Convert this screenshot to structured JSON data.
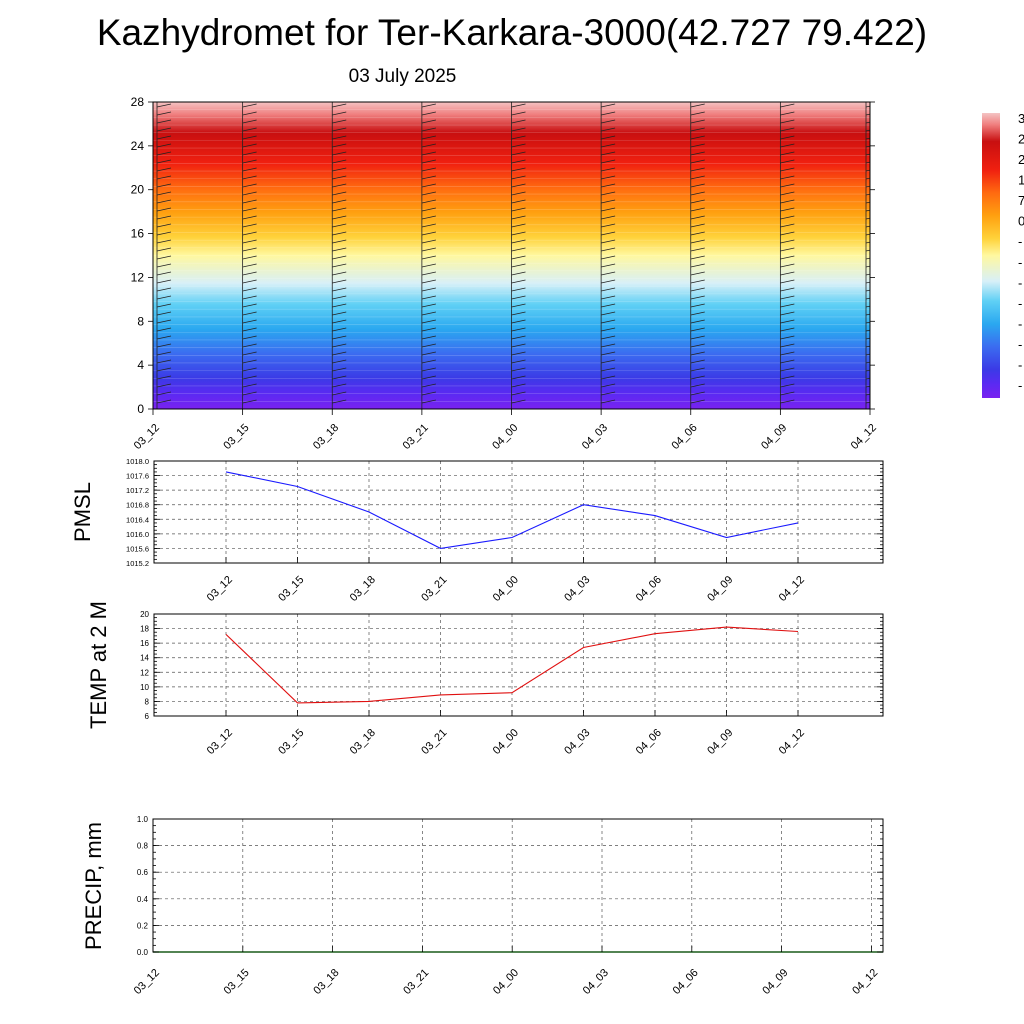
{
  "title": "Kazhydromet for Ter-Karkara-3000(42.727 79.422)",
  "subtitle": "03 July 2025",
  "colors": {
    "pmsl_line": "#1a1aff",
    "temp_line": "#e01010",
    "precip_line": "#1a5c1a"
  },
  "chart_data": [
    {
      "name": "upper-air-cross-section",
      "type": "heatmap",
      "x_ticks": [
        "03_12",
        "03_15",
        "03_18",
        "03_21",
        "04_00",
        "04_03",
        "04_06",
        "04_09",
        "04_12"
      ],
      "y_ticks": [
        "0",
        "4",
        "8",
        "12",
        "16",
        "20",
        "24",
        "28"
      ],
      "ylim": [
        0,
        28
      ],
      "colorbar_labels": [
        "3",
        "2",
        "2",
        "1",
        "7",
        "0",
        "-",
        "-",
        "-",
        "-",
        "-",
        "-",
        "-",
        "-"
      ],
      "colorbar_scale": [
        {
          "level": 0.0,
          "color": "#7a22f0"
        },
        {
          "level": 0.05,
          "color": "#5a2af2"
        },
        {
          "level": 0.1,
          "color": "#3b3ae6"
        },
        {
          "level": 0.18,
          "color": "#3b6cf0"
        },
        {
          "level": 0.26,
          "color": "#2aa8f0"
        },
        {
          "level": 0.34,
          "color": "#5fd0f5"
        },
        {
          "level": 0.41,
          "color": "#d8f0f8"
        },
        {
          "level": 0.5,
          "color": "#fff8a0"
        },
        {
          "level": 0.56,
          "color": "#ffd23a"
        },
        {
          "level": 0.64,
          "color": "#ffa010"
        },
        {
          "level": 0.72,
          "color": "#ff6a10"
        },
        {
          "level": 0.8,
          "color": "#f02010"
        },
        {
          "level": 0.9,
          "color": "#c80f10"
        },
        {
          "level": 0.96,
          "color": "#f08080"
        },
        {
          "level": 1.0,
          "color": "#f4c4c4"
        }
      ]
    },
    {
      "name": "pmsl",
      "type": "line",
      "ylabel": "PMSL",
      "x": [
        "03_12",
        "03_15",
        "03_18",
        "03_21",
        "04_00",
        "04_03",
        "04_06",
        "04_09",
        "04_12"
      ],
      "values": [
        1017.7,
        1017.3,
        1016.6,
        1015.6,
        1015.9,
        1016.8,
        1016.5,
        1015.9,
        1016.3
      ],
      "ylim": [
        1015.2,
        1018.0
      ],
      "y_ticks": [
        "1015.2",
        "1015.6",
        "1016.0",
        "1016.4",
        "1016.8",
        "1017.2",
        "1017.6",
        "1018.0"
      ]
    },
    {
      "name": "temp-2m",
      "type": "line",
      "ylabel": "TEMP at 2 M",
      "x": [
        "03_12",
        "03_15",
        "03_18",
        "03_21",
        "04_00",
        "04_03",
        "04_06",
        "04_09",
        "04_12"
      ],
      "values": [
        17.2,
        7.8,
        8.0,
        8.9,
        9.2,
        15.4,
        17.3,
        18.2,
        17.6
      ],
      "ylim": [
        6,
        20
      ],
      "y_ticks": [
        "6",
        "8",
        "10",
        "12",
        "14",
        "16",
        "18",
        "20"
      ]
    },
    {
      "name": "precip",
      "type": "line",
      "ylabel": "PRECIP, mm",
      "x_ticks": [
        "03_12",
        "03_15",
        "03_18",
        "03_21",
        "04_00",
        "04_03",
        "04_06",
        "04_09",
        "04_12"
      ],
      "values": [
        0,
        0,
        0,
        0,
        0,
        0,
        0,
        0,
        0
      ],
      "ylim": [
        0,
        1.0
      ],
      "y_ticks": [
        "0.0",
        "0.2",
        "0.4",
        "0.6",
        "0.8",
        "1.0"
      ]
    }
  ]
}
